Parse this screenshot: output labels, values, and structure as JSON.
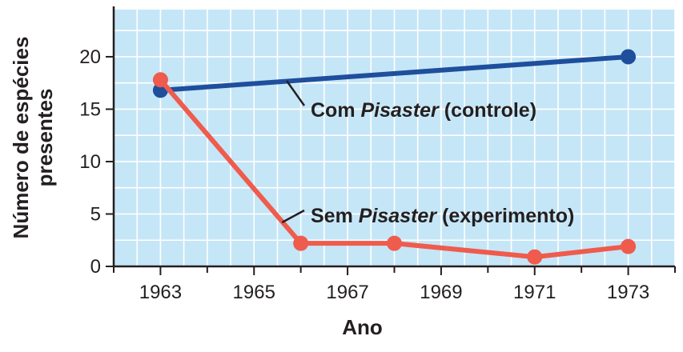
{
  "chart_data": {
    "type": "line",
    "xlabel": "Ano",
    "ylabel_lines": [
      "Número de espécies",
      "presentes"
    ],
    "x_ticks": [
      1963,
      1965,
      1967,
      1969,
      1971,
      1973
    ],
    "y_ticks": [
      0,
      5,
      10,
      15,
      20
    ],
    "xlim": [
      1962,
      1974
    ],
    "ylim": [
      0,
      24.5
    ],
    "grid": true,
    "legend": "none",
    "series": [
      {
        "key": "control",
        "color": "#1f4e9c",
        "x": [
          1963,
          1973
        ],
        "y": [
          16.8,
          20
        ]
      },
      {
        "key": "experiment",
        "color": "#ef5b4c",
        "x": [
          1963,
          1966,
          1968,
          1971,
          1973
        ],
        "y": [
          17.8,
          2.2,
          2.2,
          0.9,
          1.9
        ]
      }
    ],
    "annotations": [
      {
        "key": "control",
        "parts": [
          {
            "text": "Com ",
            "italic": false
          },
          {
            "text": "Pisaster",
            "italic": true
          },
          {
            "text": " (controle)",
            "italic": false
          }
        ],
        "anchor_x": 1965.7,
        "anchor_y": 17.7
      },
      {
        "key": "experiment",
        "parts": [
          {
            "text": "Sem ",
            "italic": false
          },
          {
            "text": "Pisaster",
            "italic": true
          },
          {
            "text": " (experimento)",
            "italic": false
          }
        ],
        "anchor_x": 1965.6,
        "anchor_y": 4.2
      }
    ],
    "colors": {
      "plot_background": "#c5e6f7",
      "grid": "#ffffff",
      "axis": "#231f20"
    }
  }
}
